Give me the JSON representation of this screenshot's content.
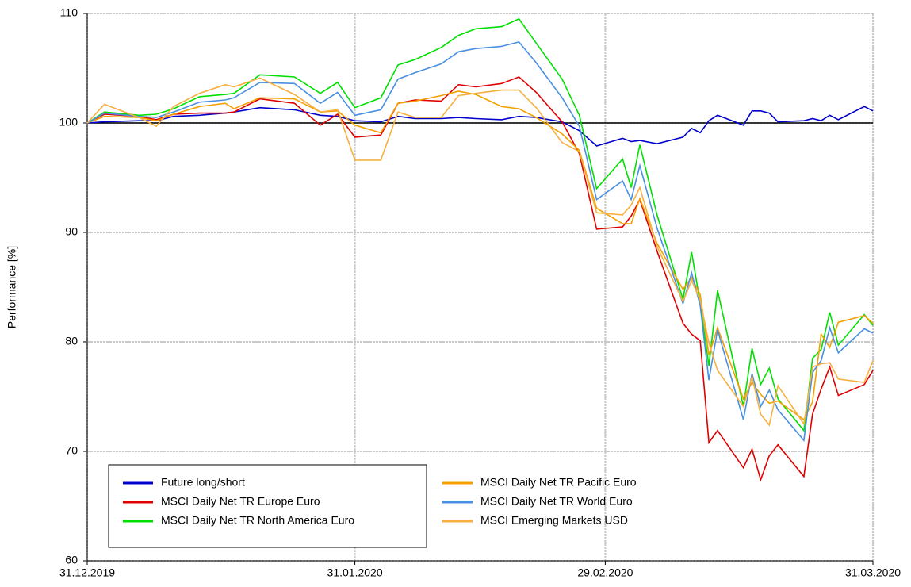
{
  "chart_data": {
    "type": "line",
    "y_label": "Performance [%]",
    "x": [
      "2019-12-31",
      "2020-01-02",
      "2020-01-06",
      "2020-01-08",
      "2020-01-10",
      "2020-01-13",
      "2020-01-16",
      "2020-01-17",
      "2020-01-20",
      "2020-01-24",
      "2020-01-27",
      "2020-01-29",
      "2020-01-31",
      "2020-02-03",
      "2020-02-05",
      "2020-02-07",
      "2020-02-10",
      "2020-02-12",
      "2020-02-14",
      "2020-02-17",
      "2020-02-19",
      "2020-02-21",
      "2020-02-24",
      "2020-02-26",
      "2020-02-28",
      "2020-03-02",
      "2020-03-03",
      "2020-03-04",
      "2020-03-06",
      "2020-03-09",
      "2020-03-10",
      "2020-03-11",
      "2020-03-12",
      "2020-03-13",
      "2020-03-16",
      "2020-03-17",
      "2020-03-18",
      "2020-03-19",
      "2020-03-20",
      "2020-03-23",
      "2020-03-24",
      "2020-03-25",
      "2020-03-26",
      "2020-03-27",
      "2020-03-30",
      "2020-03-31"
    ],
    "series": [
      {
        "name": "Future long/short",
        "color": "#0000cc",
        "values": [
          100,
          100.1,
          100.2,
          100.2,
          100.6,
          100.7,
          100.9,
          101.0,
          101.4,
          101.2,
          100.7,
          100.6,
          100.2,
          100.1,
          100.6,
          100.4,
          100.4,
          100.5,
          100.4,
          100.3,
          100.6,
          100.5,
          100.1,
          99.3,
          97.9,
          98.6,
          98.3,
          98.4,
          98.1,
          98.7,
          99.5,
          99.1,
          100.2,
          100.7,
          99.8,
          101.1,
          101.1,
          100.9,
          100.1,
          100.2,
          100.4,
          100.2,
          100.7,
          100.3,
          101.5,
          101.1
        ]
      },
      {
        "name": "MSCI Daily Net TR Europe Euro",
        "color": "#e00000",
        "values": [
          100,
          100.8,
          100.6,
          100.3,
          100.8,
          100.9,
          100.9,
          101.0,
          102.2,
          101.8,
          99.8,
          100.8,
          98.7,
          98.9,
          101.8,
          102.1,
          102.0,
          103.5,
          103.3,
          103.6,
          104.2,
          102.8,
          100.1,
          97.2,
          90.3,
          90.5,
          91.5,
          93.0,
          88.3,
          81.7,
          80.7,
          80.1,
          70.8,
          71.9,
          68.5,
          70.2,
          67.4,
          69.6,
          70.6,
          67.7,
          73.4,
          75.7,
          77.7,
          75.1,
          76.1,
          77.4
        ]
      },
      {
        "name": "MSCI Daily Net TR North America Euro",
        "color": "#00e000",
        "values": [
          100,
          101.0,
          100.7,
          100.8,
          101.3,
          102.4,
          102.6,
          102.7,
          104.4,
          104.2,
          102.7,
          103.7,
          101.4,
          102.3,
          105.3,
          105.8,
          106.9,
          108.0,
          108.6,
          108.8,
          109.5,
          107.3,
          104.0,
          100.7,
          94.0,
          96.7,
          94.1,
          98.0,
          91.6,
          83.9,
          88.2,
          83.5,
          77.8,
          84.7,
          74.1,
          79.4,
          76.1,
          77.6,
          74.8,
          71.9,
          78.5,
          79.3,
          82.7,
          79.7,
          82.5,
          81.5
        ]
      },
      {
        "name": "MSCI Daily Net TR Pacific Euro",
        "color": "#f5a000",
        "values": [
          100,
          100.6,
          100.5,
          100.2,
          100.8,
          101.5,
          101.8,
          101.3,
          102.3,
          102.2,
          101.0,
          101.1,
          99.8,
          99.1,
          101.8,
          102.0,
          102.5,
          102.9,
          102.6,
          101.5,
          101.3,
          100.5,
          99.0,
          97.5,
          92.2,
          90.8,
          90.8,
          93.1,
          89.0,
          84.8,
          85.9,
          84.3,
          78.8,
          81.3,
          74.8,
          76.3,
          75.2,
          74.4,
          74.6,
          72.9,
          74.5,
          80.7,
          79.5,
          81.8,
          82.4,
          81.7
        ]
      },
      {
        "name": "MSCI Daily Net TR World Euro",
        "color": "#4a90e2",
        "values": [
          100,
          100.9,
          100.6,
          100.5,
          101.0,
          101.9,
          102.1,
          102.3,
          103.7,
          103.6,
          101.8,
          102.8,
          100.7,
          101.2,
          104.0,
          104.6,
          105.4,
          106.5,
          106.8,
          107.0,
          107.4,
          105.5,
          102.3,
          99.7,
          93.0,
          94.7,
          93.0,
          96.1,
          90.4,
          83.5,
          86.3,
          83.3,
          76.5,
          81.1,
          72.9,
          77.1,
          74.1,
          75.6,
          73.8,
          71.0,
          77.2,
          78.3,
          81.3,
          79.0,
          81.2,
          80.8
        ]
      },
      {
        "name": "MSCI Emerging Markets USD",
        "color": "#f7b040",
        "values": [
          100,
          101.7,
          100.5,
          99.7,
          101.5,
          102.7,
          103.5,
          103.3,
          104.1,
          102.6,
          101.0,
          101.2,
          96.6,
          96.6,
          101.0,
          100.5,
          100.5,
          102.5,
          102.7,
          103.0,
          103.0,
          101.4,
          98.2,
          97.4,
          91.8,
          91.6,
          92.5,
          94.1,
          88.7,
          83.7,
          85.6,
          83.8,
          79.9,
          77.4,
          74.1,
          76.8,
          73.4,
          72.4,
          76.0,
          72.5,
          77.7,
          78.0,
          78.1,
          76.6,
          76.3,
          78.3
        ]
      }
    ],
    "xlim": [
      "2019-12-31",
      "2020-03-31"
    ],
    "xticks": [
      {
        "value": "2019-12-31",
        "label": "31.12.2019"
      },
      {
        "value": "2020-01-31",
        "label": "31.01.2020"
      },
      {
        "value": "2020-02-29",
        "label": "29.02.2020"
      },
      {
        "value": "2020-03-31",
        "label": "31.03.2020"
      }
    ],
    "ylim": [
      60,
      110
    ],
    "yticks": [
      60,
      70,
      80,
      90,
      100,
      110
    ],
    "baseline": 100,
    "grid": true,
    "legend": "lower left"
  }
}
